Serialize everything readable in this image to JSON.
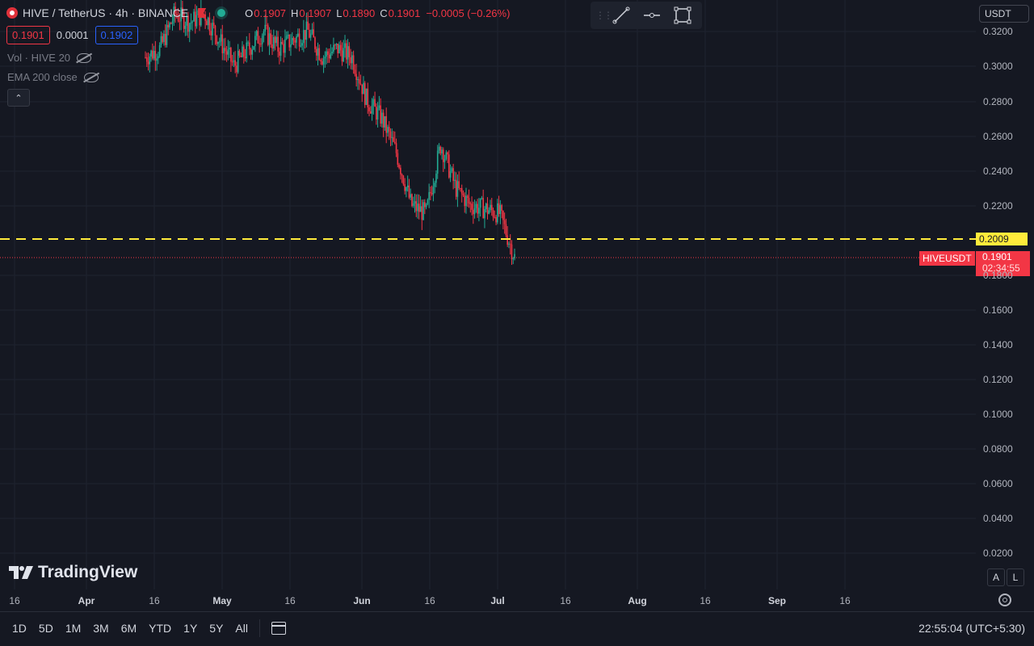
{
  "header": {
    "symbol_title": "HIVE / TetherUS · 4h · BINANCE",
    "ohlc": [
      {
        "label": "O",
        "value": "0.1907"
      },
      {
        "label": "H",
        "value": "0.1907"
      },
      {
        "label": "L",
        "value": "0.1890"
      },
      {
        "label": "C",
        "value": "0.1901"
      }
    ],
    "change": "−0.0005 (−0.26%)"
  },
  "quote": {
    "bid": "0.1901",
    "spread": "0.0001",
    "ask": "0.1902"
  },
  "indicators": [
    {
      "label": "Vol · HIVE 20"
    },
    {
      "label": "EMA 200 close"
    }
  ],
  "currency": "USDT",
  "price_axis": [
    "0.3200",
    "0.3000",
    "0.2800",
    "0.2600",
    "0.2400",
    "0.2200",
    "0.1800",
    "0.1600",
    "0.1400",
    "0.1200",
    "0.1000",
    "0.0800",
    "0.0600",
    "0.0400",
    "0.0200"
  ],
  "time_axis": [
    {
      "label": "16",
      "major": false
    },
    {
      "label": "Apr",
      "major": true
    },
    {
      "label": "16",
      "major": false
    },
    {
      "label": "May",
      "major": true
    },
    {
      "label": "16",
      "major": false
    },
    {
      "label": "Jun",
      "major": true
    },
    {
      "label": "16",
      "major": false
    },
    {
      "label": "Jul",
      "major": true
    },
    {
      "label": "16",
      "major": false
    },
    {
      "label": "Aug",
      "major": true
    },
    {
      "label": "16",
      "major": false
    },
    {
      "label": "Sep",
      "major": true
    },
    {
      "label": "16",
      "major": false
    }
  ],
  "horizontal_line": {
    "price": "0.2009",
    "color": "#ffeb3b"
  },
  "last_price": {
    "symbol": "HIVEUSDT",
    "price": "0.1901",
    "countdown": "02:34:55"
  },
  "branding": "TradingView",
  "scale_buttons": {
    "auto": "A",
    "log": "L"
  },
  "ranges": [
    "1D",
    "5D",
    "1M",
    "3M",
    "6M",
    "YTD",
    "1Y",
    "5Y",
    "All"
  ],
  "clock": "22:55:04 (UTC+5:30)",
  "colors": {
    "up": "#22ab94",
    "down": "#f23645",
    "background": "#151822"
  },
  "chart_data": {
    "type": "candlestick",
    "y_range": [
      0.0,
      0.33
    ],
    "x_range": [
      "Mar 16",
      "Sep 16"
    ],
    "series": [
      {
        "date": "Mar 22",
        "close": 0.305
      },
      {
        "date": "Mar 28",
        "close": 0.31
      },
      {
        "date": "Apr 3",
        "close": 0.33
      },
      {
        "date": "Apr 9",
        "close": 0.325
      },
      {
        "date": "Apr 15",
        "close": 0.33
      },
      {
        "date": "Apr 21",
        "close": 0.315
      },
      {
        "date": "Apr 27",
        "close": 0.3
      },
      {
        "date": "May 3",
        "close": 0.31
      },
      {
        "date": "May 9",
        "close": 0.32
      },
      {
        "date": "May 15",
        "close": 0.31
      },
      {
        "date": "May 21",
        "close": 0.315
      },
      {
        "date": "May 27",
        "close": 0.32
      },
      {
        "date": "Jun 1",
        "close": 0.305
      },
      {
        "date": "Jun 5",
        "close": 0.31
      },
      {
        "date": "Jun 8",
        "close": 0.305
      },
      {
        "date": "Jun 10",
        "close": 0.28
      },
      {
        "date": "Jun 13",
        "close": 0.27
      },
      {
        "date": "Jun 15",
        "close": 0.25
      },
      {
        "date": "Jun 17",
        "close": 0.22
      },
      {
        "date": "Jun 19",
        "close": 0.215
      },
      {
        "date": "Jun 21",
        "close": 0.255
      },
      {
        "date": "Jun 23",
        "close": 0.23
      },
      {
        "date": "Jun 25",
        "close": 0.22
      },
      {
        "date": "Jun 28",
        "close": 0.218
      },
      {
        "date": "Jul 1",
        "close": 0.215
      },
      {
        "date": "Jul 3",
        "close": 0.19
      }
    ]
  }
}
